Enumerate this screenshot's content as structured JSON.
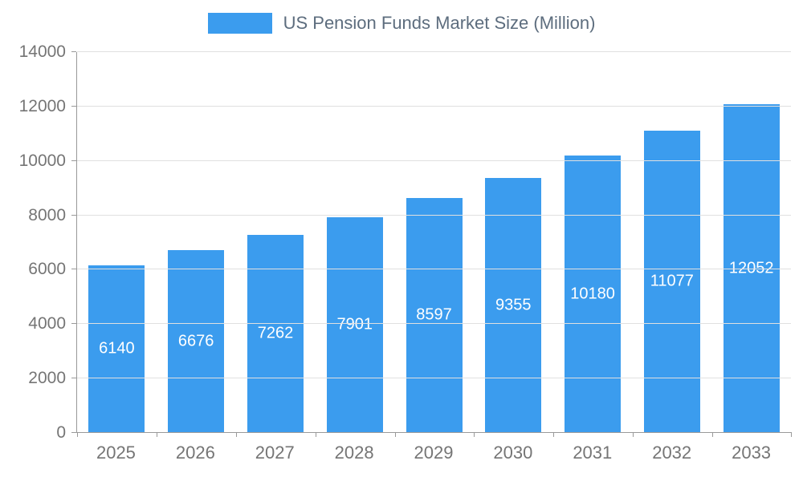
{
  "legend": {
    "swatch_color": "#3b9cee"
  },
  "chart_data": {
    "type": "bar",
    "title": "US Pension Funds Market Size (Million)",
    "categories": [
      "2025",
      "2026",
      "2027",
      "2028",
      "2029",
      "2030",
      "2031",
      "2032",
      "2033"
    ],
    "values": [
      6140,
      6676,
      7262,
      7901,
      8597,
      9355,
      10180,
      11077,
      12052
    ],
    "xlabel": "",
    "ylabel": "",
    "ylim": [
      0,
      14000
    ],
    "yticks": [
      0,
      2000,
      4000,
      6000,
      8000,
      10000,
      12000,
      14000
    ],
    "bar_color": "#3b9cee",
    "value_label_color": "#ffffff",
    "title_color": "#5d6d7e",
    "tick_label_color": "#757575",
    "gridline_color": "#e0e0e0",
    "axis_line_color": "#999999",
    "grid": true,
    "legend_position": "top"
  }
}
